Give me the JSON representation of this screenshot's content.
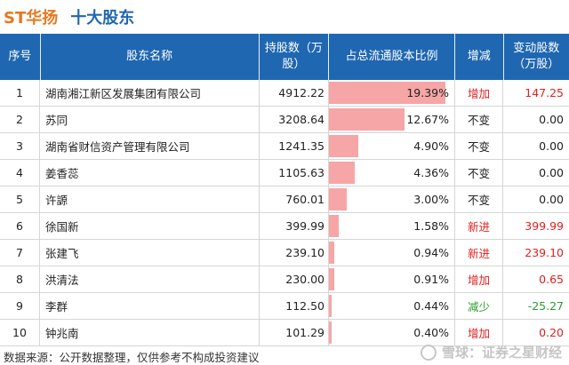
{
  "title": {
    "stock": "ST华扬",
    "section": "十大股东"
  },
  "table": {
    "headers": {
      "seq": "序号",
      "name": "股东名称",
      "hold": "持股数（万股）",
      "ratio": "占总流通股本比例",
      "change": "增减",
      "amount": "变动股数（万股）"
    },
    "rows": [
      {
        "seq": "1",
        "name": "湖南湘江新区发展集团有限公司",
        "hold": "4912.22",
        "ratio": "19.39%",
        "ratio_value": 19.39,
        "change": "增加",
        "amount": "147.25"
      },
      {
        "seq": "2",
        "name": "苏同",
        "hold": "3208.64",
        "ratio": "12.67%",
        "ratio_value": 12.67,
        "change": "不变",
        "amount": "0.00"
      },
      {
        "seq": "3",
        "name": "湖南省财信资产管理有限公司",
        "hold": "1241.35",
        "ratio": "4.90%",
        "ratio_value": 4.9,
        "change": "不变",
        "amount": "0.00"
      },
      {
        "seq": "4",
        "name": "姜香蕊",
        "hold": "1105.63",
        "ratio": "4.36%",
        "ratio_value": 4.36,
        "change": "不变",
        "amount": "0.00"
      },
      {
        "seq": "5",
        "name": "许謜",
        "hold": "760.01",
        "ratio": "3.00%",
        "ratio_value": 3.0,
        "change": "不变",
        "amount": "0.00"
      },
      {
        "seq": "6",
        "name": "徐国新",
        "hold": "399.99",
        "ratio": "1.58%",
        "ratio_value": 1.58,
        "change": "新进",
        "amount": "399.99"
      },
      {
        "seq": "7",
        "name": "张建飞",
        "hold": "239.10",
        "ratio": "0.94%",
        "ratio_value": 0.94,
        "change": "新进",
        "amount": "239.10"
      },
      {
        "seq": "8",
        "name": "洪清法",
        "hold": "230.00",
        "ratio": "0.91%",
        "ratio_value": 0.91,
        "change": "增加",
        "amount": "0.65"
      },
      {
        "seq": "9",
        "name": "李群",
        "hold": "112.50",
        "ratio": "0.44%",
        "ratio_value": 0.44,
        "change": "减少",
        "amount": "-25.27"
      },
      {
        "seq": "10",
        "name": "钟兆南",
        "hold": "101.29",
        "ratio": "0.40%",
        "ratio_value": 0.4,
        "change": "增加",
        "amount": "0.20"
      }
    ]
  },
  "footer": {
    "source": "数据来源：公开数据整理，仅供参考不构成投资建议"
  },
  "watermark": {
    "text": "雪球：证券之星财经",
    "icon": "snowball-logo-icon"
  },
  "colors": {
    "title_stock": "#e8771f",
    "title_section": "#1f67b1",
    "header_bg": "#1f67b1",
    "bar": "#f6a6a6",
    "increase": "#e02020",
    "decrease": "#2a9d2a",
    "neutral": "#222222"
  }
}
